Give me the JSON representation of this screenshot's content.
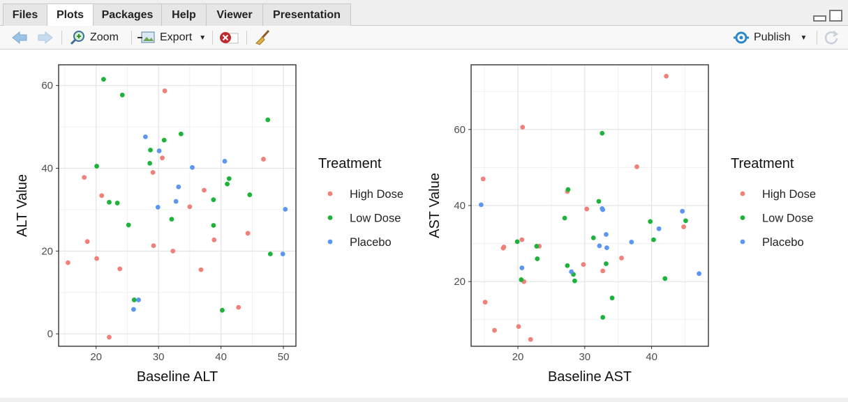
{
  "tabs": [
    {
      "label": "Files"
    },
    {
      "label": "Plots"
    },
    {
      "label": "Packages"
    },
    {
      "label": "Help"
    },
    {
      "label": "Viewer"
    },
    {
      "label": "Presentation"
    }
  ],
  "active_tab": "Plots",
  "toolbar": {
    "zoom_label": "Zoom",
    "export_label": "Export",
    "publish_label": "Publish"
  },
  "colors": {
    "High Dose": "#f08079",
    "Low Dose": "#1db33a",
    "Placebo": "#5b96f2"
  },
  "chart_data": [
    {
      "type": "scatter",
      "xlabel": "Baseline ALT",
      "ylabel": "ALT Value",
      "xlim": [
        14,
        52
      ],
      "ylim": [
        -3,
        65
      ],
      "xticks": [
        20,
        30,
        40,
        50
      ],
      "yticks": [
        0,
        20,
        40,
        60
      ],
      "grid": true,
      "legend": {
        "title": "Treatment",
        "placement": "right"
      },
      "series": [
        {
          "name": "High Dose",
          "points": [
            [
              15.5,
              17.2
            ],
            [
              18.1,
              37.8
            ],
            [
              18.6,
              22.3
            ],
            [
              20.1,
              18.2
            ],
            [
              20.9,
              33.4
            ],
            [
              22.1,
              -0.8
            ],
            [
              23.8,
              15.7
            ],
            [
              29.1,
              39.0
            ],
            [
              29.2,
              21.3
            ],
            [
              30.6,
              42.5
            ],
            [
              31.0,
              58.7
            ],
            [
              32.3,
              20.0
            ],
            [
              35.0,
              30.7
            ],
            [
              36.8,
              15.5
            ],
            [
              37.3,
              34.7
            ],
            [
              38.9,
              22.7
            ],
            [
              42.8,
              6.4
            ],
            [
              44.3,
              24.3
            ],
            [
              46.8,
              42.2
            ]
          ]
        },
        {
          "name": "Low Dose",
          "points": [
            [
              20.1,
              40.5
            ],
            [
              21.2,
              61.5
            ],
            [
              22.1,
              31.8
            ],
            [
              23.4,
              31.6
            ],
            [
              24.2,
              57.7
            ],
            [
              25.2,
              26.3
            ],
            [
              26.1,
              8.2
            ],
            [
              28.6,
              41.2
            ],
            [
              28.7,
              44.4
            ],
            [
              30.9,
              46.8
            ],
            [
              32.1,
              27.7
            ],
            [
              33.6,
              48.3
            ],
            [
              38.8,
              32.4
            ],
            [
              38.8,
              26.2
            ],
            [
              40.2,
              5.7
            ],
            [
              41.0,
              36.2
            ],
            [
              41.3,
              37.5
            ],
            [
              44.6,
              33.6
            ],
            [
              47.5,
              51.7
            ],
            [
              47.9,
              19.3
            ]
          ]
        },
        {
          "name": "Placebo",
          "points": [
            [
              26.0,
              5.9
            ],
            [
              26.8,
              8.2
            ],
            [
              27.9,
              47.6
            ],
            [
              29.9,
              30.6
            ],
            [
              30.1,
              44.2
            ],
            [
              32.8,
              32.0
            ],
            [
              33.2,
              35.5
            ],
            [
              35.4,
              40.2
            ],
            [
              40.6,
              41.7
            ],
            [
              49.9,
              19.3
            ],
            [
              50.3,
              30.1
            ]
          ]
        }
      ]
    },
    {
      "type": "scatter",
      "xlabel": "Baseline AST",
      "ylabel": "AST Value",
      "xlim": [
        13,
        48.5
      ],
      "ylim": [
        3,
        77
      ],
      "xticks": [
        20,
        30,
        40
      ],
      "yticks": [
        20,
        40,
        60
      ],
      "grid": true,
      "legend": {
        "title": "Treatment",
        "placement": "right"
      },
      "series": [
        {
          "name": "High Dose",
          "points": [
            [
              14.8,
              47.0
            ],
            [
              15.1,
              14.6
            ],
            [
              16.5,
              7.2
            ],
            [
              17.8,
              28.8
            ],
            [
              17.9,
              29.1
            ],
            [
              20.1,
              8.2
            ],
            [
              20.6,
              31.0
            ],
            [
              20.7,
              60.6
            ],
            [
              20.9,
              20.0
            ],
            [
              21.9,
              4.8
            ],
            [
              23.2,
              29.3
            ],
            [
              27.4,
              43.7
            ],
            [
              29.8,
              24.5
            ],
            [
              30.3,
              39.1
            ],
            [
              32.7,
              22.8
            ],
            [
              35.5,
              26.2
            ],
            [
              37.8,
              50.2
            ],
            [
              42.2,
              74.0
            ],
            [
              44.8,
              34.4
            ]
          ]
        },
        {
          "name": "Low Dose",
          "points": [
            [
              19.9,
              30.5
            ],
            [
              20.5,
              20.5
            ],
            [
              22.8,
              29.3
            ],
            [
              22.9,
              26.0
            ],
            [
              27.0,
              36.7
            ],
            [
              27.4,
              24.2
            ],
            [
              27.5,
              44.2
            ],
            [
              28.3,
              21.9
            ],
            [
              28.5,
              20.2
            ],
            [
              31.3,
              31.5
            ],
            [
              32.1,
              41.1
            ],
            [
              32.6,
              59.0
            ],
            [
              32.7,
              10.6
            ],
            [
              33.2,
              24.7
            ],
            [
              34.1,
              15.7
            ],
            [
              39.8,
              35.8
            ],
            [
              40.3,
              31.0
            ],
            [
              42.0,
              20.8
            ],
            [
              45.1,
              36.0
            ]
          ]
        },
        {
          "name": "Placebo",
          "points": [
            [
              14.5,
              40.2
            ],
            [
              20.6,
              23.6
            ],
            [
              28.0,
              22.6
            ],
            [
              32.2,
              29.4
            ],
            [
              32.6,
              39.2
            ],
            [
              32.7,
              38.9
            ],
            [
              33.2,
              32.4
            ],
            [
              33.3,
              28.9
            ],
            [
              37.0,
              30.4
            ],
            [
              41.1,
              33.9
            ],
            [
              44.6,
              38.5
            ],
            [
              47.1,
              22.1
            ]
          ]
        }
      ]
    }
  ]
}
